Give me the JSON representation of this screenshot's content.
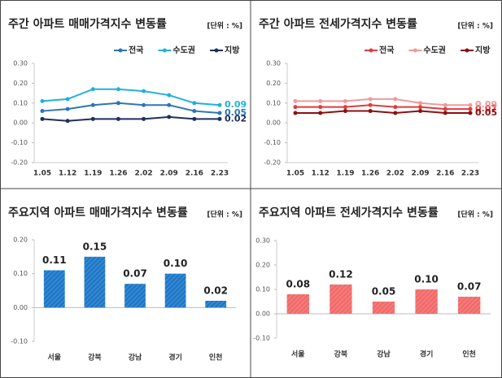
{
  "chart_data": [
    {
      "type": "line",
      "title": "주간 아파트 매매가격지수 변동률",
      "unit_label": "[단위 : %]",
      "legend": "top-right",
      "categories": [
        "1.05",
        "1.12",
        "1.19",
        "1.26",
        "2.02",
        "2.09",
        "2.16",
        "2.23"
      ],
      "series": [
        {
          "name": "전국",
          "color": "#2e75b6",
          "values": [
            0.06,
            0.07,
            0.09,
            0.1,
            0.09,
            0.09,
            0.06,
            0.05
          ]
        },
        {
          "name": "수도권",
          "color": "#22b0dc",
          "values": [
            0.11,
            0.12,
            0.17,
            0.17,
            0.16,
            0.14,
            0.1,
            0.09
          ]
        },
        {
          "name": "지방",
          "color": "#1f2f60",
          "values": [
            0.02,
            0.01,
            0.02,
            0.02,
            0.02,
            0.03,
            0.02,
            0.02
          ]
        }
      ],
      "ylim": [
        -0.2,
        0.3
      ],
      "yticks": [
        {
          "value": 0.3,
          "label": "0.30"
        },
        {
          "value": 0.2,
          "label": "0.20"
        },
        {
          "value": 0.1,
          "label": "0.10"
        },
        {
          "value": 0,
          "label": "0.00"
        },
        {
          "value": -0.1,
          "label": "-0.10"
        },
        {
          "value": -0.2,
          "label": "-0.20"
        }
      ]
    },
    {
      "type": "line",
      "title": "주간 아파트 전세가격지수 변동률",
      "unit_label": "[단위 : %]",
      "legend": "top-right",
      "categories": [
        "1.05",
        "1.12",
        "1.19",
        "1.26",
        "2.02",
        "2.09",
        "2.16",
        "2.23"
      ],
      "series": [
        {
          "name": "전국",
          "color": "#e03c3c",
          "values": [
            0.08,
            0.08,
            0.08,
            0.09,
            0.08,
            0.08,
            0.07,
            0.07
          ]
        },
        {
          "name": "수도권",
          "color": "#f09a9a",
          "values": [
            0.11,
            0.11,
            0.11,
            0.12,
            0.12,
            0.1,
            0.09,
            0.09
          ]
        },
        {
          "name": "지방",
          "color": "#8b1010",
          "values": [
            0.05,
            0.05,
            0.06,
            0.06,
            0.05,
            0.06,
            0.05,
            0.05
          ]
        }
      ],
      "ylim": [
        -0.2,
        0.3
      ],
      "yticks": [
        {
          "value": 0.3,
          "label": "0.30"
        },
        {
          "value": 0.2,
          "label": "0.20"
        },
        {
          "value": 0.1,
          "label": "0.10"
        },
        {
          "value": 0,
          "label": "0.00"
        },
        {
          "value": -0.1,
          "label": "-0.10"
        },
        {
          "value": -0.2,
          "label": "-0.20"
        }
      ]
    },
    {
      "type": "bar",
      "title": "주요지역 아파트 매매가격지수 변동률",
      "unit_label": "[단위 : %]",
      "color": "#1f78c8",
      "categories": [
        "서울",
        "강북",
        "강남",
        "경기",
        "인천"
      ],
      "values": [
        0.11,
        0.15,
        0.07,
        0.1,
        0.02
      ],
      "value_labels": [
        "0.11",
        "0.15",
        "0.07",
        "0.10",
        "0.02"
      ],
      "ylim": [
        -0.1,
        0.2
      ],
      "yticks": [
        {
          "value": 0.2,
          "label": "0.20"
        },
        {
          "value": 0.1,
          "label": "0.10"
        },
        {
          "value": 0,
          "label": "0.00"
        },
        {
          "value": -0.1,
          "label": "-0.10"
        }
      ]
    },
    {
      "type": "bar",
      "title": "주요지역 아파트 전세가격지수 변동률",
      "unit_label": "[단위 : %]",
      "color": "#f26b6b",
      "categories": [
        "서울",
        "강북",
        "강남",
        "경기",
        "인천"
      ],
      "values": [
        0.08,
        0.12,
        0.05,
        0.1,
        0.07
      ],
      "value_labels": [
        "0.08",
        "0.12",
        "0.05",
        "0.10",
        "0.07"
      ],
      "ylim": [
        -0.1,
        0.3
      ],
      "yticks": [
        {
          "value": 0.3,
          "label": "0.30"
        },
        {
          "value": 0.2,
          "label": "0.20"
        },
        {
          "value": 0.1,
          "label": "0.10"
        },
        {
          "value": 0,
          "label": "0.00"
        },
        {
          "value": -0.1,
          "label": "-0.10"
        }
      ]
    }
  ]
}
